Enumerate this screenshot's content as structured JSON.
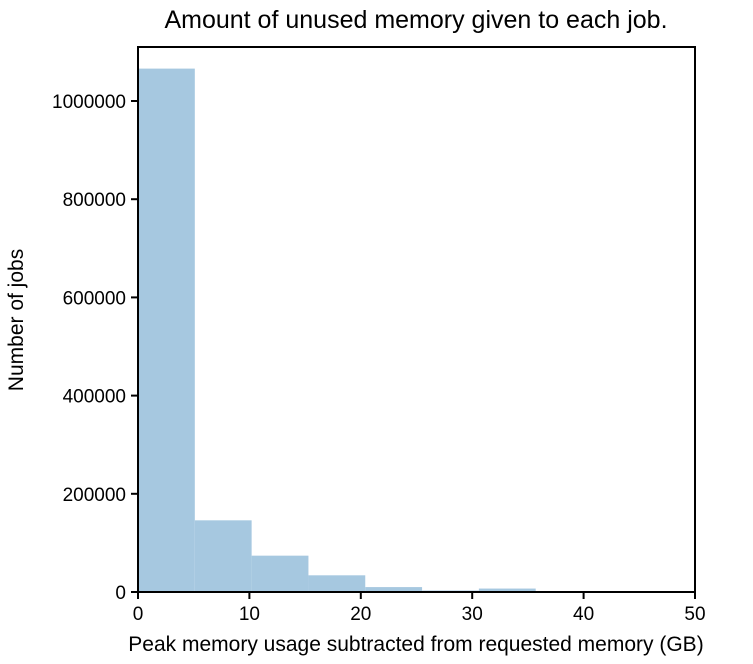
{
  "chart_data": {
    "type": "bar",
    "title": "Amount of unused memory given to each job.",
    "xlabel": "Peak memory usage subtracted from requested memory (GB)",
    "ylabel": "Number of jobs",
    "xlim": [
      0,
      50
    ],
    "ylim": [
      0,
      1110000
    ],
    "xticks": [
      0,
      10,
      20,
      30,
      40,
      50
    ],
    "yticks": [
      0,
      200000,
      400000,
      600000,
      800000,
      1000000
    ],
    "bins": [
      {
        "x0": 0.0,
        "x1": 5.1,
        "value": 1066000
      },
      {
        "x0": 5.1,
        "x1": 10.2,
        "value": 146000
      },
      {
        "x0": 10.2,
        "x1": 15.3,
        "value": 74000
      },
      {
        "x0": 15.3,
        "x1": 20.4,
        "value": 34000
      },
      {
        "x0": 20.4,
        "x1": 25.5,
        "value": 10000
      },
      {
        "x0": 25.5,
        "x1": 30.6,
        "value": 3000
      },
      {
        "x0": 30.6,
        "x1": 35.7,
        "value": 7000
      },
      {
        "x0": 35.7,
        "x1": 40.8,
        "value": 500
      },
      {
        "x0": 40.8,
        "x1": 45.9,
        "value": 200
      },
      {
        "x0": 45.9,
        "x1": 51.0,
        "value": 100
      }
    ],
    "bar_color": "#a6c8e0",
    "grid": false,
    "legend": "none"
  }
}
